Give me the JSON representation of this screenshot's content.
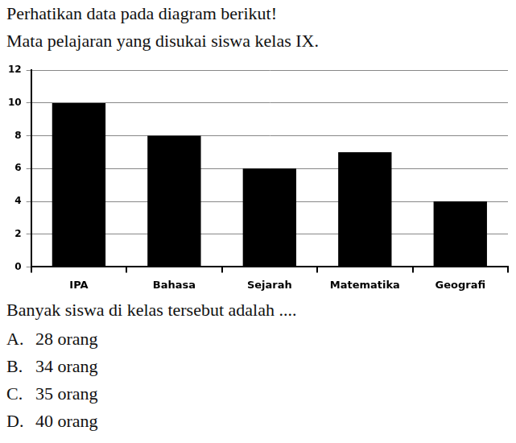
{
  "intro": "Perhatikan data pada diagram berikut!",
  "chart_data": {
    "type": "bar",
    "title": "Mata pelajaran yang disukai siswa kelas IX.",
    "categories": [
      "IPA",
      "Bahasa",
      "Sejarah",
      "Matematika",
      "Geografi"
    ],
    "values": [
      10,
      8,
      6,
      7,
      4
    ],
    "color": "#000000",
    "ylim": [
      0,
      12
    ],
    "yticks": [
      0,
      2,
      4,
      6,
      8,
      10,
      12
    ],
    "grid": true
  },
  "question": "Banyak siswa di kelas tersebut adalah ....",
  "options": [
    {
      "label": "A.",
      "text": "28 orang"
    },
    {
      "label": "B.",
      "text": "34 orang"
    },
    {
      "label": "C.",
      "text": "35 orang"
    },
    {
      "label": "D.",
      "text": "40 orang"
    }
  ]
}
